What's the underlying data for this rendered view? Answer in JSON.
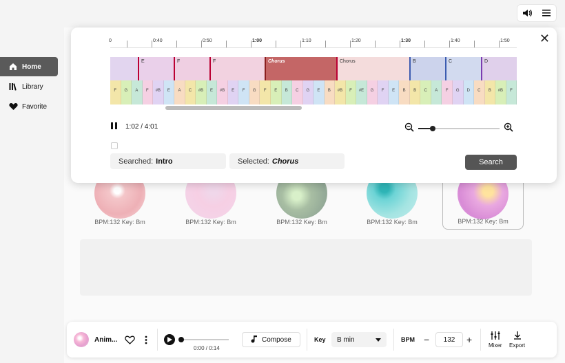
{
  "top_actions": {
    "volume_icon": "volume-icon",
    "menu_icon": "hamburger-icon"
  },
  "sidebar": {
    "items": [
      {
        "label": "Home",
        "icon": "home-icon",
        "active": true
      },
      {
        "label": "Library",
        "icon": "library-icon",
        "active": false
      },
      {
        "label": "Favorite",
        "icon": "heart-icon",
        "active": false
      }
    ]
  },
  "cards": [
    {
      "label": "BPM:132 Key: Bm",
      "bg": "#f6eeee",
      "art": "#f2c7c9"
    },
    {
      "label": "BPM:132 Key: Bm",
      "bg": "#f5f0f7",
      "art": "#f3cfe3"
    },
    {
      "label": "BPM:132 Key: Bm",
      "bg": "#eef5ea",
      "art": "#a9c3a6"
    },
    {
      "label": "BPM:132 Key: Bm",
      "bg": "#edf4f5",
      "art": "#8fd4d7"
    },
    {
      "label": "BPM:132 Key: Bm",
      "bg": "#f4f2f5",
      "art": "#e9b4e2"
    }
  ],
  "popup": {
    "close_icon": "close-icon",
    "ruler": [
      "0",
      "0:40",
      "0:50",
      "1:00",
      "1:10",
      "1:20",
      "1:30",
      "1:40",
      "1:50"
    ],
    "sections": [
      {
        "label": "E",
        "color": "#e4c7e9"
      },
      {
        "label": "F",
        "color": "#efc9e2"
      },
      {
        "label": "F",
        "color": "#f2c6dc"
      },
      {
        "label": "Chorus",
        "color": "#c56a6a",
        "selected": true
      },
      {
        "label": "Chorus",
        "color": "#f2d7d7"
      },
      {
        "label": "B",
        "color": "#c9cfea"
      },
      {
        "label": "C",
        "color": "#cdd6ee"
      },
      {
        "label": "D",
        "color": "#e0cce9"
      }
    ],
    "chords": [
      "F",
      "G",
      "A",
      "F",
      "#B",
      "E",
      "A",
      "C",
      "#B",
      "E",
      "#B",
      "E",
      "F",
      "G",
      "F",
      "E",
      "B",
      "C",
      "G",
      "E",
      "B",
      "#B",
      "F",
      "#E",
      "G",
      "F",
      "E",
      "B",
      "B",
      "C",
      "A",
      "F",
      "G",
      "D",
      "C",
      "B",
      "#B",
      "F"
    ],
    "time": "1:02 / 4:01",
    "pause_icon": "pause-icon",
    "zoom_out_icon": "zoom-out-icon",
    "zoom_in_icon": "zoom-in-icon",
    "zoom_level": 0.18,
    "searched_label": "Searched:",
    "searched_value": "Intro",
    "selected_label": "Selected:",
    "selected_value": "Chorus",
    "search_button": "Search"
  },
  "player": {
    "track_title": "Anim...",
    "heart_icon": "heart-outline-icon",
    "more_icon": "more-vertical-icon",
    "play_icon": "play-icon",
    "time": "0:00 / 0:14",
    "compose_label": "Compose",
    "music_icon": "music-note-icon",
    "key_label": "Key",
    "key_value": "B min",
    "bpm_label": "BPM",
    "bpm_value": "132",
    "minus": "−",
    "plus": "+",
    "mixer_label": "Mixer",
    "export_label": "Export"
  }
}
